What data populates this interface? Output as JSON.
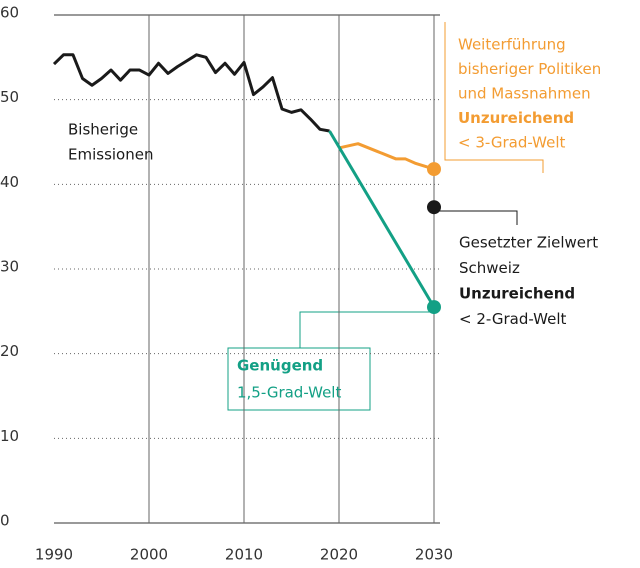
{
  "chart_data": {
    "type": "line",
    "xlim": [
      1990,
      2030
    ],
    "ylim": [
      0,
      60
    ],
    "xticks": [
      1990,
      2000,
      2010,
      2020,
      2030
    ],
    "yticks": [
      0,
      10,
      20,
      30,
      40,
      50,
      60
    ],
    "series": [
      {
        "color": "#1a1a1a",
        "marker": false,
        "x": [
          1990,
          1991,
          1992,
          1993,
          1994,
          1995,
          1996,
          1997,
          1998,
          1999,
          2000,
          2001,
          2002,
          2003,
          2004,
          2005,
          2006,
          2007,
          2008,
          2009,
          2010,
          2011,
          2012,
          2013,
          2014,
          2015,
          2016,
          2017,
          2018,
          2019
        ],
        "values": [
          54.2,
          55.3,
          55.3,
          52.5,
          51.7,
          52.5,
          53.5,
          52.3,
          53.5,
          53.5,
          52.9,
          54.3,
          53.1,
          53.9,
          54.6,
          55.3,
          55.0,
          53.2,
          54.3,
          53.0,
          54.4,
          50.6,
          51.5,
          52.6,
          48.9,
          48.5,
          48.8,
          47.7,
          46.5,
          46.3
        ]
      },
      {
        "color": "#f39c32",
        "marker": true,
        "x": [
          2020,
          2022,
          2024,
          2026,
          2027,
          2028,
          2030
        ],
        "values": [
          44.3,
          44.8,
          43.9,
          43.0,
          43.0,
          42.5,
          41.8
        ]
      },
      {
        "color": "#13a085",
        "marker": true,
        "x": [
          2019,
          2030
        ],
        "values": [
          46.3,
          25.5
        ]
      },
      {
        "color": "#1a1a1a",
        "marker": true,
        "x": [
          2030
        ],
        "values": [
          37.3
        ]
      }
    ],
    "annotations": [
      {
        "color": "#1a1a1a",
        "lines": [
          {
            "text": "Bisherige",
            "bold": false
          },
          {
            "text": "Emissionen",
            "bold": false
          }
        ]
      },
      {
        "color": "#f39c32",
        "lines": [
          {
            "text": "Weiterführung",
            "bold": false
          },
          {
            "text": "bisheriger Politiken",
            "bold": false
          },
          {
            "text": "und Massnahmen",
            "bold": false
          },
          {
            "text": "Unzureichend",
            "bold": true
          },
          {
            "text": "< 3-Grad-Welt",
            "bold": false
          }
        ]
      },
      {
        "color": "#1a1a1a",
        "lines": [
          {
            "text": "Gesetzter Zielwert",
            "bold": false
          },
          {
            "text": "Schweiz",
            "bold": false
          },
          {
            "text": "Unzureichend",
            "bold": true
          },
          {
            "text": "< 2-Grad-Welt",
            "bold": false
          }
        ]
      },
      {
        "color": "#13a085",
        "lines": [
          {
            "text": "Genügend",
            "bold": true
          },
          {
            "text": "1,5-Grad-Welt",
            "bold": false
          }
        ]
      }
    ]
  }
}
